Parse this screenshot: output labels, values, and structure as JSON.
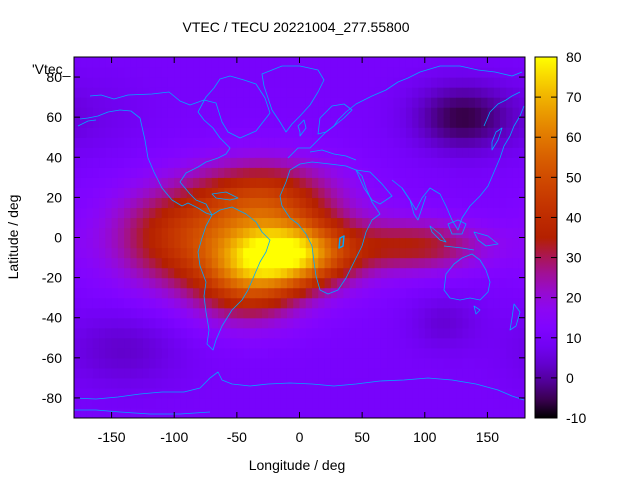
{
  "chart_data": {
    "type": "heatmap",
    "title": "VTEC / TECU 20221004_277.55800",
    "xlabel": "Longitude / deg",
    "ylabel": "Latitude / deg",
    "legend_label": "'Vtec_",
    "xlim": [
      -180,
      180
    ],
    "ylim": [
      -90,
      90
    ],
    "x_ticks": [
      -150,
      -100,
      -50,
      0,
      50,
      100,
      150
    ],
    "y_ticks": [
      -80,
      -60,
      -40,
      -20,
      0,
      20,
      40,
      60,
      80
    ],
    "colorbar": {
      "range": [
        -10,
        80
      ],
      "ticks": [
        -10,
        0,
        10,
        20,
        30,
        40,
        50,
        60,
        70,
        80
      ],
      "palette": "gnuplot-default",
      "colors": [
        "#000000",
        "#3a0d8c",
        "#7a00ff",
        "#b416c8",
        "#d4364f",
        "#ec6a10",
        "#f6a500",
        "#fbdf1a",
        "#ffff3a"
      ]
    },
    "grid_step_deg": [
      5,
      5
    ],
    "features": [
      {
        "name": "equatorial-anomaly-peak",
        "lon": -5,
        "lat": -8,
        "value": 68
      },
      {
        "name": "north-crest",
        "lon": -30,
        "lat": 20,
        "value": 42
      },
      {
        "name": "south-crest",
        "lon": -45,
        "lat": -28,
        "value": 44
      },
      {
        "name": "pacific-extension",
        "lon": -110,
        "lat": 0,
        "value": 37
      },
      {
        "name": "indian-ocean-band",
        "lon": 100,
        "lat": -6,
        "value": 34
      },
      {
        "name": "siberia-minimum",
        "lon": 125,
        "lat": 62,
        "value": -6
      },
      {
        "name": "south-pacific-minimum",
        "lon": -140,
        "lat": -55,
        "value": 4
      },
      {
        "name": "southern-indian-minimum",
        "lon": 115,
        "lat": -42,
        "value": 4
      }
    ],
    "coastline_color": "#00a8ff",
    "grid": false,
    "legend_position": "top-left"
  }
}
